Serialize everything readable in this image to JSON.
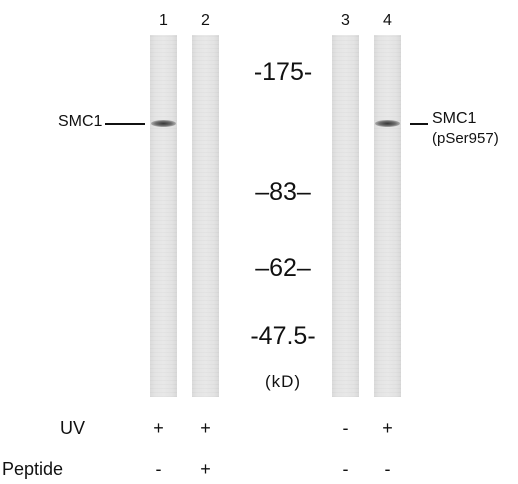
{
  "lanes": [
    {
      "number": "1",
      "uv": "+",
      "peptide": "-",
      "band": true
    },
    {
      "number": "2",
      "uv": "+",
      "peptide": "+",
      "band": false
    },
    {
      "number": "3",
      "uv": "-",
      "peptide": "-",
      "band": false
    },
    {
      "number": "4",
      "uv": "+",
      "peptide": "-",
      "band": true
    }
  ],
  "markers": [
    "-175-",
    "–83–",
    "–62–",
    "-47.5-"
  ],
  "unit": "(kD)",
  "left_label": "SMC1",
  "right_label": {
    "line1": "SMC1",
    "line2": "(pSer957)"
  },
  "rows": {
    "uv": "UV",
    "peptide": "Peptide"
  }
}
